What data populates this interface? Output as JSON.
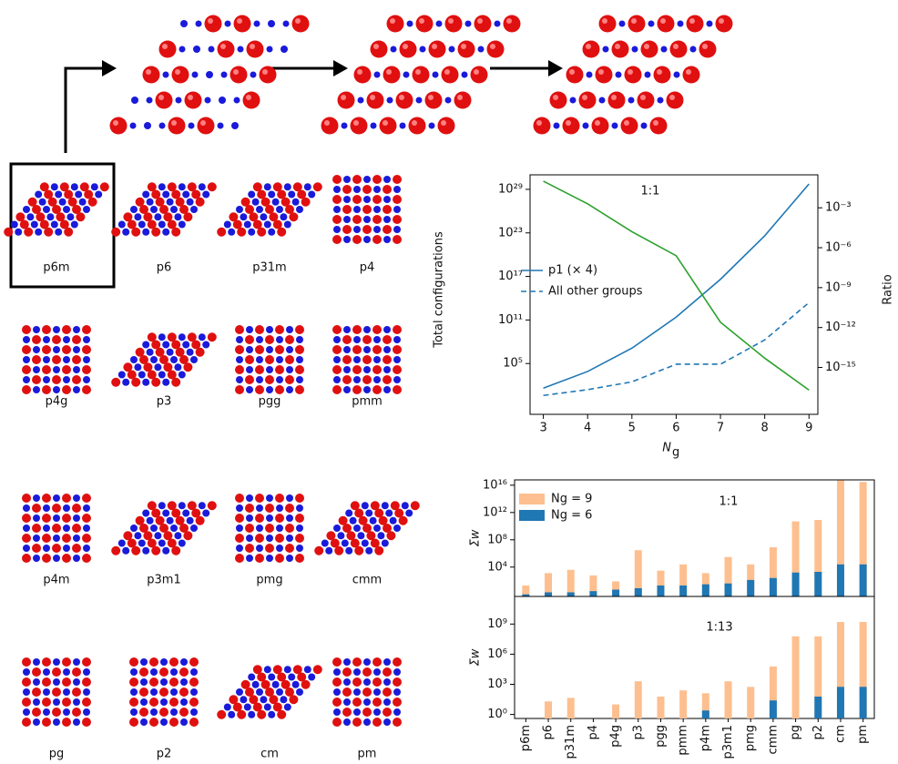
{
  "structures": {
    "labels": [
      "p6m",
      "p6",
      "p31m",
      "p4",
      "p4g",
      "p3",
      "pgg",
      "pmm",
      "p4m",
      "p3m1",
      "pmg",
      "cmm",
      "pg",
      "p2",
      "cm",
      "pm"
    ]
  },
  "chart_data": [
    {
      "type": "line",
      "annotation": "1:1",
      "log": true,
      "xlabel": {
        "text": "N",
        "sub": "g"
      },
      "ylabel": "Total configurations",
      "y2label": "Ratio",
      "x": [
        3,
        4,
        5,
        6,
        7,
        8,
        9
      ],
      "xlim": [
        2.7,
        9.2
      ],
      "xticks": [
        3,
        4,
        5,
        6,
        7,
        8,
        9
      ],
      "ylim": [
        0.01,
        1e+31
      ],
      "yticks": [
        {
          "value": 100000.0,
          "label": "10⁵"
        },
        {
          "value": 100000000000.0,
          "label": "10¹¹"
        },
        {
          "value": 1e+17,
          "label": "10¹⁷"
        },
        {
          "value": 1e+23,
          "label": "10²³"
        },
        {
          "value": 1e+29,
          "label": "10²⁹"
        }
      ],
      "y2lim": [
        3e-19,
        0.3
      ],
      "y2ticks": [
        {
          "value": 1e-15,
          "label": "10⁻¹⁵"
        },
        {
          "value": 1e-12,
          "label": "10⁻¹²"
        },
        {
          "value": 1e-09,
          "label": "10⁻⁹"
        },
        {
          "value": 1e-06,
          "label": "10⁻⁶"
        },
        {
          "value": 0.001,
          "label": "10⁻³"
        }
      ],
      "series": [
        {
          "name": "p1 (× 4)",
          "color": "#1f77b4",
          "dash": false,
          "values": [
            40,
            8000,
            13000000,
            250000000000,
            4e+16,
            4e+22,
            5.6e+29
          ]
        },
        {
          "name": "All other groups",
          "color": "#1f77b4",
          "dash": true,
          "values": [
            4,
            25,
            300,
            80000,
            80000,
            180000000,
            25000000000000.0
          ]
        },
        {
          "color": "#2ca02c",
          "axis": "y2",
          "values": [
            0.1,
            0.002,
            1.6e-05,
            2.5e-07,
            2.5e-12,
            5e-15,
            2e-17
          ]
        }
      ]
    },
    {
      "type": "bar",
      "log": true,
      "categories": [
        "p6m",
        "p6",
        "p31m",
        "p4",
        "p4g",
        "p3",
        "pgg",
        "pmm",
        "p4m",
        "p3m1",
        "pmg",
        "cmm",
        "pg",
        "p2",
        "cm",
        "pm"
      ],
      "panels": [
        {
          "annotation": "1:1",
          "ylabel": "Σw",
          "ylim": [
            0.5,
            6e+16
          ],
          "yticks": [
            {
              "value": 10000,
              "label": "10⁴"
            },
            {
              "value": 100000000,
              "label": "10⁸"
            },
            {
              "value": 1000000000000.0,
              "label": "10¹²"
            },
            {
              "value": 1e+16,
              "label": "10¹⁶"
            }
          ],
          "series": [
            {
              "name": "Ng = 9",
              "color": "#fdbf8f",
              "values": [
                20,
                1300,
                4000,
                600,
                80,
                3000000,
                3000,
                25000,
                1300,
                300000,
                25000,
                8000000,
                50000000000,
                80000000000,
                5e+16,
                3e+16
              ]
            },
            {
              "name": "Ng = 6",
              "color": "#1f77b4",
              "values": [
                1,
                2,
                2,
                3,
                5,
                8,
                20,
                20,
                30,
                40,
                130,
                250,
                1600,
                2000,
                25000,
                25000
              ]
            }
          ]
        },
        {
          "annotation": "1:13",
          "ylabel": "Σw",
          "ylim": [
            0.4,
            560000000000
          ],
          "yticks": [
            {
              "value": 1,
              "label": "10⁰"
            },
            {
              "value": 1000,
              "label": "10³"
            },
            {
              "value": 1000000,
              "label": "10⁶"
            },
            {
              "value": 1000000000,
              "label": "10⁹"
            }
          ],
          "series": [
            {
              "color": "#fdbf8f",
              "values": [
                null,
                20,
                45,
                null,
                10,
                2000,
                60,
                250,
                130,
                2000,
                560,
                60000,
                60000000,
                60000000,
                1600000000,
                1600000000
              ]
            },
            {
              "color": "#1f77b4",
              "values": [
                null,
                null,
                null,
                null,
                null,
                null,
                null,
                null,
                2.5,
                null,
                null,
                25,
                null,
                60,
                560,
                560
              ]
            }
          ]
        }
      ]
    }
  ]
}
